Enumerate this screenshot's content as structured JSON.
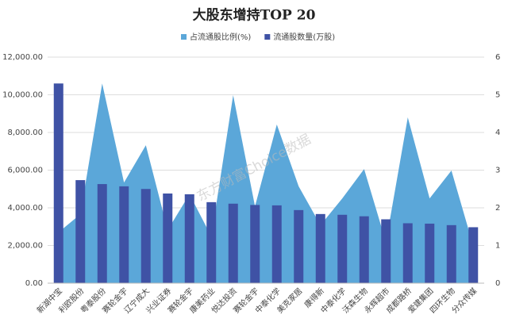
{
  "chart_data": {
    "type": "bar-area",
    "title": "大股东增持TOP 20",
    "watermark": "东方财富Choice数据",
    "categories": [
      "新湖中宝",
      "利欧股份",
      "粤泰股份",
      "赛轮金宇",
      "辽宁成大",
      "兴业证券",
      "赛轮金宇",
      "康美药业",
      "悦达投资",
      "赛轮金宇",
      "中泰化学",
      "美克家居",
      "康得新",
      "中泰化学",
      "沃森生物",
      "永辉超市",
      "成都路桥",
      "爱建集团",
      "四环生物",
      "分众传媒"
    ],
    "series": [
      {
        "name": "占流通股比例(%)",
        "color": "#5ba7d9",
        "axis": "y2",
        "values": [
          1.35,
          1.83,
          5.3,
          2.67,
          3.66,
          1.41,
          2.36,
          1.24,
          4.99,
          2.04,
          4.21,
          2.57,
          1.54,
          2.25,
          3.03,
          1.09,
          4.4,
          2.25,
          2.99,
          0.99
        ]
      },
      {
        "name": "流通股数量(万股)",
        "color": "#3f52a5",
        "values": [
          10600,
          5470,
          5260,
          5140,
          5000,
          4760,
          4720,
          4300,
          4220,
          4150,
          4130,
          3880,
          3670,
          3630,
          3550,
          3390,
          3180,
          3160,
          3080,
          2970
        ]
      }
    ],
    "ylim": [
      0,
      12000
    ],
    "yticks": [
      {
        "value": 0,
        "label": "0.00"
      },
      {
        "value": 2000,
        "label": "2,000.00"
      },
      {
        "value": 4000,
        "label": "4,000.00"
      },
      {
        "value": 6000,
        "label": "6,000.00"
      },
      {
        "value": 8000,
        "label": "8,000.00"
      },
      {
        "value": 10000,
        "label": "10,000.00"
      },
      {
        "value": 12000,
        "label": "12,000.00"
      }
    ],
    "y2lim": [
      0,
      6
    ],
    "y2ticks": [
      0,
      1,
      2,
      3,
      4,
      5,
      6
    ],
    "grid": true
  }
}
